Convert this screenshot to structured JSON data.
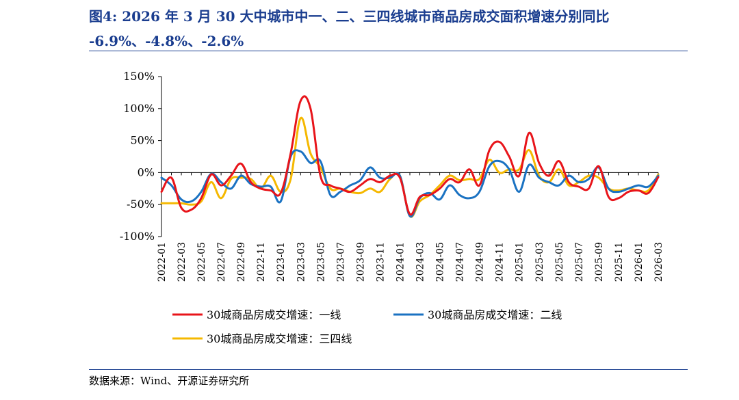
{
  "title_line1": "图4:  2026 年 3 月 30 大中城市中一、二、三四线城市商品房成交面积增速分别同比",
  "title_line2": "-6.9%、-4.8%、-2.6%",
  "source": "数据来源：Wind、开源证券研究所",
  "chart_data": {
    "type": "line",
    "title": "",
    "xlabel": "",
    "ylabel": "",
    "ylim": [
      -100,
      150
    ],
    "yticks": [
      -100,
      -50,
      0,
      50,
      100,
      150
    ],
    "ytick_labels": [
      "-100%",
      "-50%",
      "0%",
      "50%",
      "100%",
      "150%"
    ],
    "x": [
      "2022-01",
      "2022-02",
      "2022-03",
      "2022-04",
      "2022-05",
      "2022-06",
      "2022-07",
      "2022-08",
      "2022-09",
      "2022-10",
      "2022-11",
      "2022-12",
      "2023-01",
      "2023-02",
      "2023-03",
      "2023-04",
      "2023-05",
      "2023-06",
      "2023-07",
      "2023-08",
      "2023-09",
      "2023-10",
      "2023-11",
      "2023-12",
      "2024-01",
      "2024-02",
      "2024-03",
      "2024-04",
      "2024-05",
      "2024-06",
      "2024-07",
      "2024-08",
      "2024-09",
      "2024-10",
      "2024-11",
      "2024-12",
      "2025-01",
      "2025-02",
      "2025-03",
      "2025-04",
      "2025-05",
      "2025-06",
      "2025-07",
      "2025-08",
      "2025-09",
      "2025-10",
      "2025-11",
      "2025-12",
      "2026-01",
      "2026-02",
      "2026-03"
    ],
    "xtick_labels": [
      "2022-01",
      "2022-03",
      "2022-05",
      "2022-07",
      "2022-09",
      "2022-11",
      "2023-01",
      "2023-03",
      "2023-05",
      "2023-07",
      "2023-09",
      "2023-11",
      "2024-01",
      "2024-03",
      "2024-05",
      "2024-07",
      "2024-09",
      "2024-11",
      "2025-01",
      "2025-03",
      "2025-05",
      "2025-07",
      "2025-09",
      "2025-11",
      "2026-01",
      "2026-03"
    ],
    "series": [
      {
        "name": "30城商品房成交增速：一线",
        "color": "#e8141a",
        "values": [
          -30,
          -8,
          -55,
          -58,
          -40,
          -3,
          -20,
          -5,
          14,
          -15,
          -25,
          -28,
          -32,
          30,
          112,
          100,
          -5,
          -20,
          -25,
          -30,
          -20,
          -10,
          -15,
          -5,
          -8,
          -65,
          -38,
          -35,
          -25,
          -10,
          -15,
          5,
          -20,
          35,
          48,
          25,
          -5,
          62,
          15,
          -5,
          18,
          -15,
          -22,
          -25,
          10,
          -38,
          -40,
          -30,
          -28,
          -32,
          -7
        ]
      },
      {
        "name": "30城商品房成交增速：二线",
        "color": "#1a72c2",
        "values": [
          -8,
          -20,
          -42,
          -45,
          -30,
          -2,
          -15,
          -25,
          -5,
          -18,
          -22,
          -22,
          -45,
          25,
          33,
          15,
          18,
          -35,
          -30,
          -20,
          -12,
          8,
          -8,
          -8,
          -5,
          -68,
          -40,
          -32,
          -42,
          -20,
          -35,
          -40,
          -30,
          10,
          18,
          5,
          -30,
          12,
          -8,
          -15,
          -20,
          -5,
          -15,
          -10,
          8,
          -25,
          -30,
          -25,
          -20,
          -22,
          -5
        ]
      },
      {
        "name": "30城商品房成交增速：三四线",
        "color": "#f5b800",
        "values": [
          -48,
          -48,
          -48,
          -50,
          -45,
          -15,
          -40,
          -10,
          -8,
          -10,
          -25,
          -5,
          -30,
          -10,
          85,
          30,
          8,
          -25,
          -25,
          -30,
          -32,
          -25,
          -30,
          -10,
          -5,
          -68,
          -45,
          -35,
          -20,
          -5,
          -12,
          -10,
          -10,
          20,
          0,
          5,
          5,
          35,
          -5,
          -15,
          5,
          -20,
          -15,
          -5,
          -8,
          -25,
          -28,
          -25,
          -28,
          -28,
          -3
        ]
      }
    ],
    "legend_position": "bottom"
  }
}
